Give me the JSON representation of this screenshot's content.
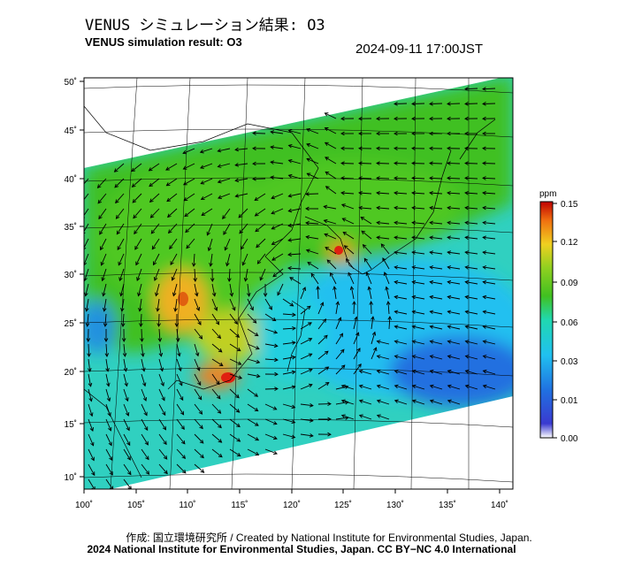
{
  "header": {
    "title_jp": "VENUS シミュレーション結果: O3",
    "title_en": "VENUS simulation result: O3",
    "timestamp": "2024-09-11 17:00JST"
  },
  "map": {
    "lat_labels": [
      "50˚",
      "45˚",
      "40˚",
      "35˚",
      "30˚",
      "25˚",
      "20˚",
      "15˚",
      "10˚"
    ],
    "lon_labels": [
      "100˚",
      "105˚",
      "110˚",
      "115˚",
      "120˚",
      "125˚",
      "130˚",
      "135˚",
      "140˚"
    ],
    "field_colors": {
      "high": "#e02010",
      "mid_high": "#f0b020",
      "mid": "#40c020",
      "mid_low": "#20e0c8",
      "low": "#2070e0"
    },
    "arrow_color": "#000000"
  },
  "colorbar": {
    "unit": "ppm",
    "ticks": [
      "0.15",
      "0.12",
      "0.09",
      "0.06",
      "0.03",
      "0.01",
      "0.00"
    ]
  },
  "footer": {
    "credit_line": "作成: 国立環境研究所 / Created by National Institute for Environmental Studies, Japan.",
    "license_line": "2024 National Institute for Environmental Studies, Japan. CC BY−NC 4.0 International"
  }
}
